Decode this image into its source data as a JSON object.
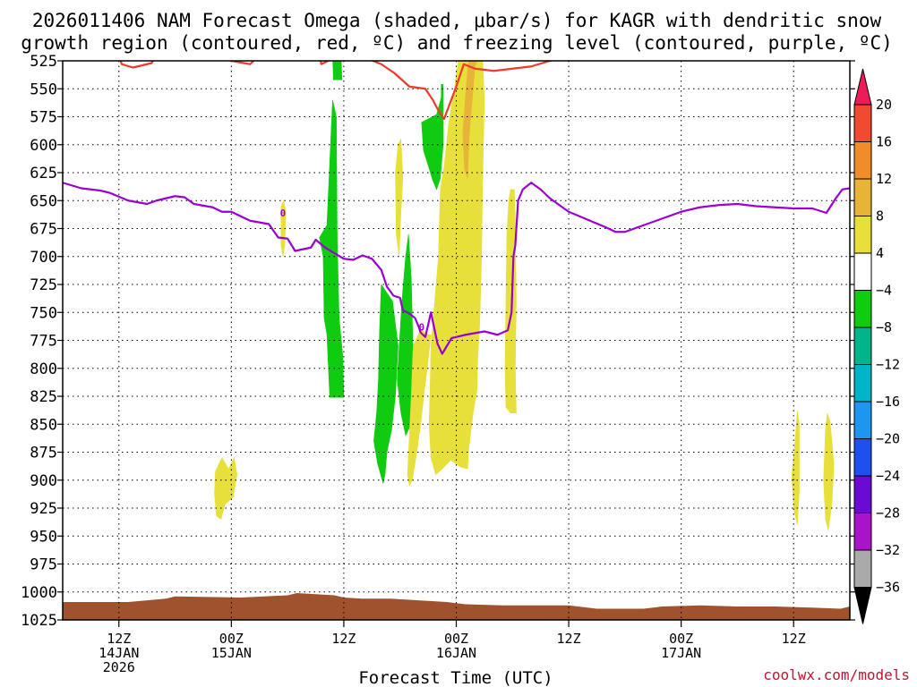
{
  "header": {
    "title_line1": "2026011406 NAM Forecast Omega (shaded, μbar/s) for KAGR with dendritic snow",
    "title_line2": "growth region (contoured, red, ºC) and freezing level (contoured, purple, ºC)"
  },
  "footer": {
    "watermark": "coolwx.com/models"
  },
  "chart_data": {
    "type": "time-height cross section",
    "xlabel": "Forecast Time (UTC)",
    "ylabel": "",
    "x_unit": "forecast hour from 2026-01-14 06Z",
    "xlim": [
      0,
      84
    ],
    "x_ticks": [
      {
        "hour": 6,
        "lines": [
          "12Z",
          "14JAN",
          "2026"
        ]
      },
      {
        "hour": 18,
        "lines": [
          "00Z",
          "15JAN"
        ]
      },
      {
        "hour": 30,
        "lines": [
          "12Z"
        ]
      },
      {
        "hour": 42,
        "lines": [
          "00Z",
          "16JAN"
        ]
      },
      {
        "hour": 54,
        "lines": [
          "12Z"
        ]
      },
      {
        "hour": 66,
        "lines": [
          "00Z",
          "17JAN"
        ]
      },
      {
        "hour": 78,
        "lines": [
          "12Z"
        ]
      }
    ],
    "y_unit": "hPa",
    "ylim": [
      1025,
      525
    ],
    "y_ticks": [
      525,
      550,
      575,
      600,
      625,
      650,
      675,
      700,
      725,
      750,
      775,
      800,
      825,
      850,
      875,
      900,
      925,
      950,
      975,
      1000,
      1025
    ],
    "grid": true,
    "colorbar": {
      "labels": [
        "20",
        "16",
        "12",
        "8",
        "4",
        "−4",
        "−8",
        "−12",
        "−16",
        "−20",
        "−24",
        "−28",
        "−32",
        "−36"
      ],
      "colors": [
        "#ee1a5a",
        "#f04a30",
        "#f08c2a",
        "#e8b437",
        "#e8e03a",
        "#ffffff",
        "#10cc10",
        "#00b48c",
        "#00b4c8",
        "#1e96f0",
        "#1e50f0",
        "#6a0ad2",
        "#aa14c8",
        "#aaaaaa",
        "#000000"
      ]
    },
    "freezing_level": {
      "name": "freezing level (0 ºC)",
      "color": "#9b00d3",
      "label": "0",
      "points": [
        [
          0,
          634
        ],
        [
          2,
          639
        ],
        [
          4,
          641
        ],
        [
          5,
          643
        ],
        [
          7,
          650
        ],
        [
          9,
          653
        ],
        [
          10,
          650
        ],
        [
          12,
          646
        ],
        [
          13,
          647
        ],
        [
          14,
          653
        ],
        [
          16,
          656
        ],
        [
          17,
          660
        ],
        [
          18,
          660
        ],
        [
          20,
          668
        ],
        [
          22,
          671
        ],
        [
          23,
          683
        ],
        [
          24,
          684
        ],
        [
          24.8,
          695
        ],
        [
          26.5,
          692
        ],
        [
          27,
          685
        ],
        [
          28,
          692
        ],
        [
          30,
          702
        ],
        [
          31,
          703
        ],
        [
          32,
          699
        ],
        [
          33,
          702
        ],
        [
          34,
          712
        ],
        [
          34.6,
          727
        ],
        [
          35.3,
          735
        ],
        [
          36,
          737
        ],
        [
          36.3,
          748
        ],
        [
          37,
          751
        ],
        [
          37.6,
          755
        ],
        [
          38,
          763
        ],
        [
          38.2,
          768
        ],
        [
          38.7,
          772
        ],
        [
          39.3,
          750
        ],
        [
          40,
          778
        ],
        [
          40.5,
          787
        ],
        [
          41.5,
          773
        ],
        [
          43,
          770
        ],
        [
          45,
          767
        ],
        [
          46.4,
          770
        ],
        [
          47.5,
          766
        ],
        [
          47.9,
          750
        ],
        [
          48.1,
          700
        ],
        [
          48.3,
          690
        ],
        [
          48.6,
          650
        ],
        [
          49.1,
          640
        ],
        [
          50,
          634
        ],
        [
          51,
          640
        ],
        [
          52,
          648
        ],
        [
          54,
          660
        ],
        [
          56,
          667
        ],
        [
          58,
          674
        ],
        [
          59,
          678
        ],
        [
          60,
          678
        ],
        [
          62,
          672
        ],
        [
          64,
          666
        ],
        [
          66,
          660
        ],
        [
          68,
          656
        ],
        [
          70,
          654
        ],
        [
          72,
          653
        ],
        [
          74,
          655
        ],
        [
          76,
          656
        ],
        [
          78,
          657
        ],
        [
          80,
          657
        ],
        [
          81.5,
          661
        ],
        [
          82.5,
          648
        ],
        [
          83.2,
          640
        ],
        [
          84,
          639
        ]
      ]
    },
    "dgz_boundary": {
      "name": "dendritic snow growth region (−12 to −18 ºC)",
      "color": "#ee3a2a",
      "points": [
        [
          6,
          520
        ],
        [
          6.3,
          528
        ],
        [
          7.5,
          531
        ],
        [
          9.5,
          527
        ],
        [
          10,
          519
        ],
        [
          17.5,
          519
        ],
        [
          18,
          525
        ],
        [
          20,
          528
        ],
        [
          21,
          520
        ],
        [
          27.4,
          519
        ],
        [
          27.6,
          528
        ],
        [
          28.8,
          523
        ],
        [
          29,
          519
        ],
        [
          30.3,
          519
        ],
        [
          31.5,
          521
        ],
        [
          32.5,
          523
        ],
        [
          34,
          528
        ],
        [
          35.4,
          536
        ],
        [
          37,
          548
        ],
        [
          38.7,
          550
        ],
        [
          39.5,
          560
        ],
        [
          40,
          568
        ],
        [
          40.7,
          577
        ],
        [
          42,
          548
        ],
        [
          42.8,
          528
        ],
        [
          44,
          532
        ],
        [
          46,
          534
        ],
        [
          48,
          532
        ],
        [
          50,
          530
        ],
        [
          52,
          525
        ],
        [
          54,
          521
        ],
        [
          55,
          519
        ]
      ]
    },
    "omega_regions": [
      {
        "level": "−4 to −8",
        "color": "#10cc10",
        "polygon": [
          [
            27.4,
            683
          ],
          [
            28.2,
            672
          ],
          [
            28.8,
            560
          ],
          [
            29.2,
            575
          ],
          [
            29.3,
            687
          ],
          [
            29.5,
            755
          ],
          [
            29.9,
            790
          ],
          [
            30,
            826
          ],
          [
            28.5,
            826
          ],
          [
            28.2,
            770
          ],
          [
            27.9,
            755
          ],
          [
            27.8,
            700
          ]
        ]
      },
      {
        "level": "−4 to −8",
        "color": "#10cc10",
        "polygon": [
          [
            28.8,
            520
          ],
          [
            29.7,
            520
          ],
          [
            29.8,
            542
          ],
          [
            28.9,
            542
          ]
        ]
      },
      {
        "level": "−4 to −8",
        "color": "#10cc10",
        "polygon": [
          [
            34,
            725
          ],
          [
            35.2,
            740
          ],
          [
            35.8,
            780
          ],
          [
            35.5,
            825
          ],
          [
            35.1,
            855
          ],
          [
            34.6,
            875
          ],
          [
            34.4,
            895
          ],
          [
            34.2,
            903
          ],
          [
            33.6,
            885
          ],
          [
            33.2,
            865
          ],
          [
            33.5,
            840
          ],
          [
            33.7,
            810
          ],
          [
            33.8,
            770
          ]
        ]
      },
      {
        "level": "−4 to −8",
        "color": "#10cc10",
        "polygon": [
          [
            35.7,
            810
          ],
          [
            36.2,
            740
          ],
          [
            36.6,
            700
          ],
          [
            36.9,
            680
          ],
          [
            37.2,
            720
          ],
          [
            37.4,
            790
          ],
          [
            37.2,
            850
          ],
          [
            36.6,
            860
          ],
          [
            36.1,
            840
          ]
        ]
      },
      {
        "level": "−4 to −8",
        "color": "#10cc10",
        "polygon": [
          [
            38.3,
            580
          ],
          [
            39.9,
            573
          ],
          [
            40.4,
            558
          ],
          [
            40.4,
            546
          ],
          [
            40.6,
            546
          ],
          [
            40.6,
            600
          ],
          [
            40.3,
            630
          ],
          [
            39.9,
            640
          ],
          [
            39.5,
            632
          ],
          [
            38.5,
            605
          ]
        ]
      },
      {
        "level": "4 to 8",
        "color": "#e8e03a",
        "polygon": [
          [
            16.3,
            892
          ],
          [
            17,
            880
          ],
          [
            17.7,
            890
          ],
          [
            18.3,
            880
          ],
          [
            18.6,
            895
          ],
          [
            18.2,
            915
          ],
          [
            17.3,
            922
          ],
          [
            16.9,
            935
          ],
          [
            16.4,
            932
          ],
          [
            16.2,
            912
          ]
        ]
      },
      {
        "level": "4 to 8",
        "color": "#e8e03a",
        "polygon": [
          [
            23.3,
            655
          ],
          [
            23.6,
            650
          ],
          [
            23.8,
            660
          ],
          [
            23.7,
            690
          ],
          [
            23.5,
            700
          ],
          [
            23.3,
            690
          ]
        ]
      },
      {
        "level": "4 to 8",
        "color": "#e8e03a",
        "polygon": [
          [
            35.5,
            625
          ],
          [
            35.8,
            600
          ],
          [
            36.1,
            595
          ],
          [
            36.3,
            630
          ],
          [
            36.1,
            660
          ],
          [
            35.9,
            700
          ],
          [
            35.6,
            680
          ]
        ]
      },
      {
        "level": "4 to 8",
        "color": "#e8e03a",
        "polygon": [
          [
            37.4,
            780
          ],
          [
            38.2,
            765
          ],
          [
            39,
            770
          ],
          [
            39.3,
            770
          ],
          [
            38.9,
            800
          ],
          [
            38.6,
            820
          ],
          [
            38.2,
            850
          ],
          [
            37.7,
            880
          ],
          [
            37.3,
            900
          ],
          [
            37,
            905
          ],
          [
            36.8,
            895
          ],
          [
            37,
            860
          ],
          [
            37.2,
            825
          ]
        ]
      },
      {
        "level": "4 to 8",
        "color": "#e8e03a",
        "polygon": [
          [
            39.3,
            780
          ],
          [
            40.1,
            700
          ],
          [
            40.3,
            640
          ],
          [
            40.7,
            620
          ],
          [
            41.2,
            580
          ],
          [
            41.8,
            550
          ],
          [
            42.2,
            525
          ],
          [
            42.5,
            519
          ],
          [
            44.8,
            519
          ],
          [
            45,
            560
          ],
          [
            44.8,
            640
          ],
          [
            44.7,
            700
          ],
          [
            44.5,
            760
          ],
          [
            44.3,
            790
          ],
          [
            44.2,
            820
          ],
          [
            43.8,
            840
          ],
          [
            43.5,
            860
          ],
          [
            43.3,
            875
          ],
          [
            43.2,
            890
          ],
          [
            42.4,
            888
          ],
          [
            41.4,
            882
          ],
          [
            40.5,
            890
          ],
          [
            39.8,
            895
          ],
          [
            39.3,
            880
          ],
          [
            39.1,
            850
          ],
          [
            39.2,
            820
          ]
        ]
      },
      {
        "level": "8 to 12",
        "color": "#e8b437",
        "polygon": [
          [
            43.3,
            525
          ],
          [
            44.1,
            519
          ],
          [
            44.5,
            519
          ],
          [
            44,
            530
          ],
          [
            43.7,
            560
          ],
          [
            43.4,
            590
          ],
          [
            43.2,
            630
          ],
          [
            42.9,
            622
          ],
          [
            42.7,
            590
          ],
          [
            43,
            555
          ]
        ]
      },
      {
        "level": "4 to 8",
        "color": "#e8e03a",
        "polygon": [
          [
            47.4,
            680
          ],
          [
            47.6,
            650
          ],
          [
            47.8,
            640
          ],
          [
            48.2,
            640
          ],
          [
            48.3,
            670
          ],
          [
            48.4,
            740
          ],
          [
            48.3,
            800
          ],
          [
            48.4,
            840
          ],
          [
            47.8,
            840
          ],
          [
            47.3,
            835
          ],
          [
            47.2,
            800
          ]
        ]
      },
      {
        "level": "4 to 8",
        "color": "#e8e03a",
        "polygon": [
          [
            78.1,
            870
          ],
          [
            78.4,
            838
          ],
          [
            78.6,
            850
          ],
          [
            78.6,
            910
          ],
          [
            78.4,
            940
          ],
          [
            78,
            925
          ],
          [
            77.8,
            895
          ]
        ]
      },
      {
        "level": "4 to 8",
        "color": "#e8e03a",
        "polygon": [
          [
            81.4,
            855
          ],
          [
            81.6,
            840
          ],
          [
            81.9,
            848
          ],
          [
            82.3,
            885
          ],
          [
            82.1,
            920
          ],
          [
            81.7,
            945
          ],
          [
            81.4,
            935
          ],
          [
            81.2,
            900
          ]
        ]
      }
    ],
    "terrain": {
      "color": "#a0522d",
      "points": [
        [
          0,
          1009
        ],
        [
          7,
          1009
        ],
        [
          11,
          1006
        ],
        [
          12,
          1004
        ],
        [
          19,
          1005
        ],
        [
          24,
          1003
        ],
        [
          25,
          1001
        ],
        [
          29,
          1003
        ],
        [
          30,
          1005
        ],
        [
          32,
          1006
        ],
        [
          35,
          1006
        ],
        [
          37,
          1007
        ],
        [
          41,
          1009
        ],
        [
          43,
          1011
        ],
        [
          47,
          1012
        ],
        [
          54,
          1012
        ],
        [
          57,
          1015
        ],
        [
          62,
          1015
        ],
        [
          64,
          1013
        ],
        [
          68,
          1012
        ],
        [
          72,
          1013
        ],
        [
          76,
          1013
        ],
        [
          80,
          1014
        ],
        [
          83,
          1015
        ],
        [
          84,
          1013
        ]
      ]
    }
  }
}
